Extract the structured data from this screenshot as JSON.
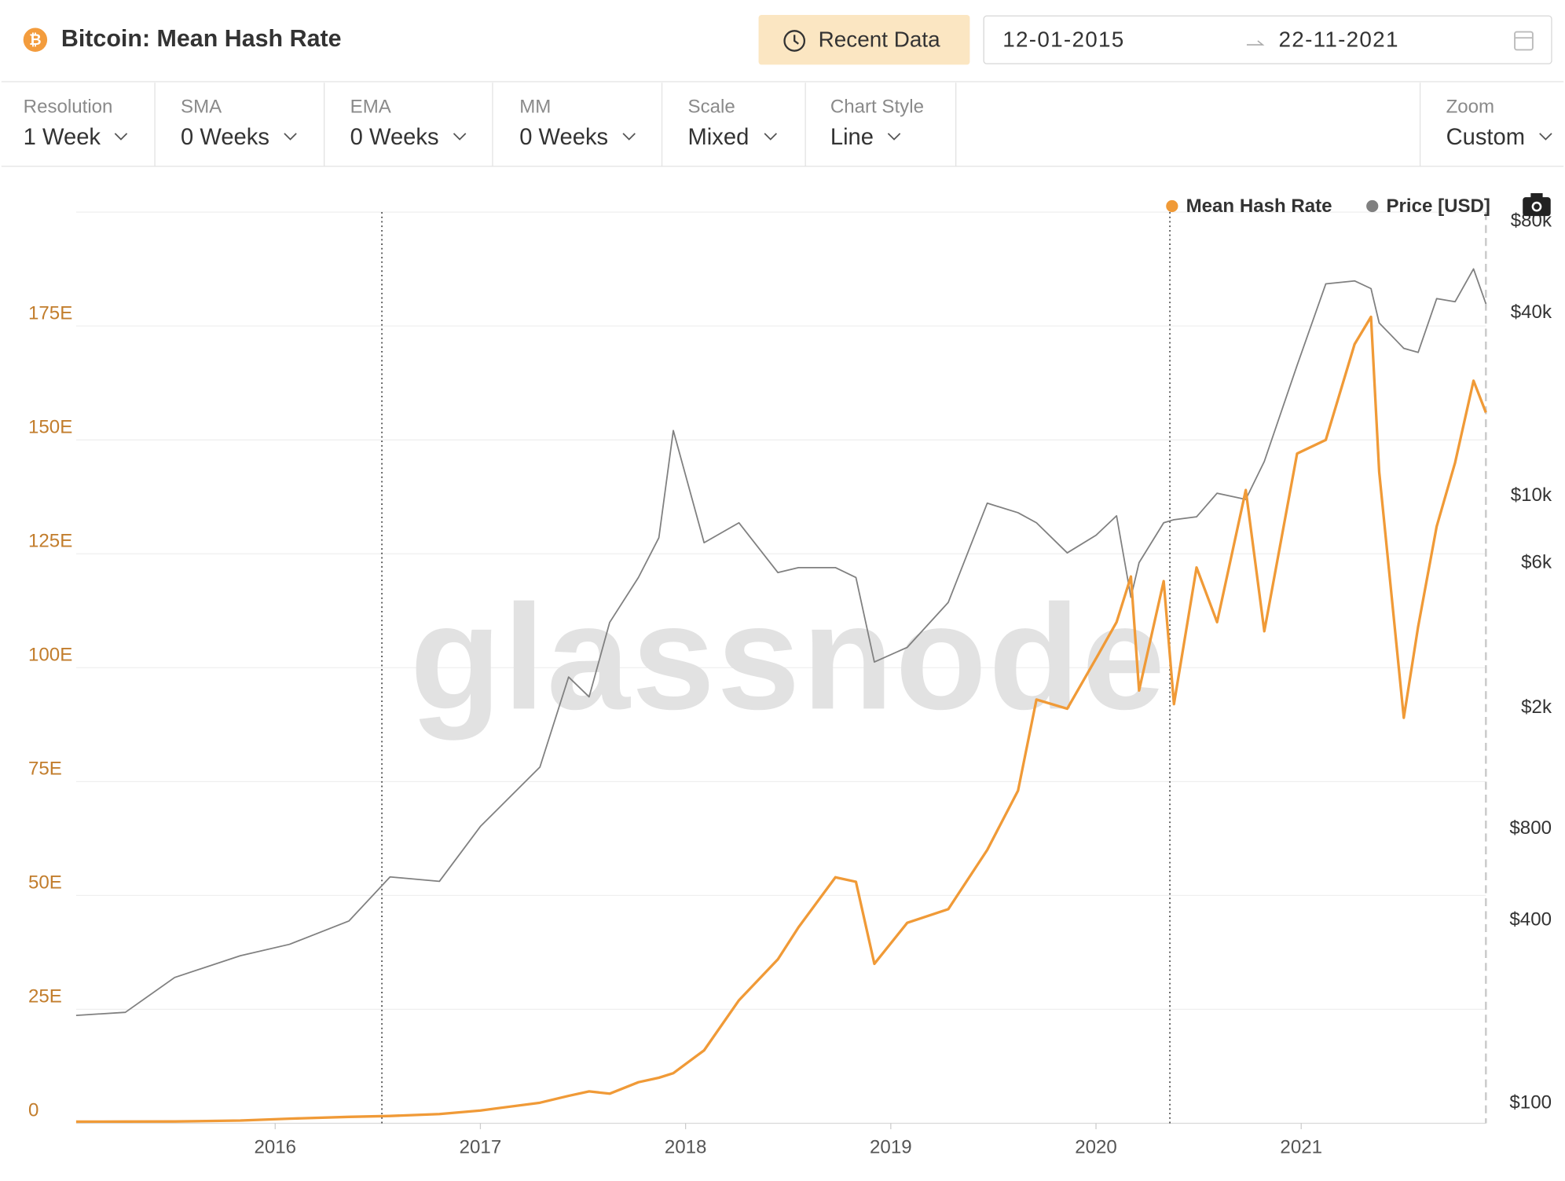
{
  "header": {
    "title": "Bitcoin: Mean Hash Rate",
    "button": "Recent Data",
    "date_from": "12-01-2015",
    "date_to": "22-11-2021"
  },
  "controls": [
    {
      "label": "Resolution",
      "value": "1 Week"
    },
    {
      "label": "SMA",
      "value": "0 Weeks"
    },
    {
      "label": "EMA",
      "value": "0 Weeks"
    },
    {
      "label": "MM",
      "value": "0 Weeks"
    },
    {
      "label": "Scale",
      "value": "Mixed"
    },
    {
      "label": "Chart Style",
      "value": "Line"
    },
    {
      "label": "Zoom",
      "value": "Custom"
    }
  ],
  "chart_data": {
    "type": "line",
    "watermark": "glassnode",
    "x": [
      2015.03,
      2015.27,
      2015.51,
      2015.83,
      2016.07,
      2016.36,
      2016.56,
      2016.8,
      2017.0,
      2017.29,
      2017.43,
      2017.53,
      2017.63,
      2017.77,
      2017.87,
      2017.94,
      2018.09,
      2018.26,
      2018.45,
      2018.55,
      2018.73,
      2018.83,
      2018.92,
      2019.08,
      2019.28,
      2019.47,
      2019.62,
      2019.71,
      2019.86,
      2020.0,
      2020.1,
      2020.17,
      2020.21,
      2020.33,
      2020.38,
      2020.49,
      2020.59,
      2020.73,
      2020.82,
      2020.98,
      2021.12,
      2021.26,
      2021.34,
      2021.38,
      2021.5,
      2021.57,
      2021.66,
      2021.75,
      2021.84,
      2021.9
    ],
    "series": [
      {
        "name": "Mean Hash Rate",
        "color": "#f09a37",
        "axis": "y",
        "values": [
          0.35,
          0.37,
          0.4,
          0.6,
          1.0,
          1.4,
          1.6,
          2.0,
          2.8,
          4.5,
          6,
          7,
          6.5,
          9,
          10,
          11,
          16,
          27,
          36,
          43,
          54,
          53,
          35,
          44,
          47,
          60,
          73,
          93,
          91,
          102,
          110,
          120,
          95,
          119,
          92,
          122,
          110,
          139,
          108,
          147,
          150,
          171,
          177,
          143,
          89,
          109,
          131,
          145,
          163,
          156
        ]
      },
      {
        "name": "Price [USD]",
        "color": "#808080",
        "axis": "y2",
        "values": [
          210,
          215,
          280,
          330,
          360,
          430,
          600,
          580,
          880,
          1380,
          2730,
          2350,
          4130,
          5810,
          7850,
          17700,
          7560,
          8790,
          6030,
          6260,
          6260,
          5810,
          3060,
          3420,
          4810,
          10200,
          9490,
          8790,
          7000,
          8000,
          9270,
          5000,
          6500,
          8790,
          9000,
          9200,
          11000,
          10500,
          14000,
          29000,
          53800,
          55000,
          51900,
          40000,
          33000,
          32000,
          48100,
          47000,
          60300,
          46300
        ]
      }
    ],
    "vlines": [
      2016.52,
      2020.36
    ],
    "xlim": [
      2015.03,
      2021.9
    ],
    "xticks": [
      2016,
      2017,
      2018,
      2019,
      2020,
      2021
    ],
    "ylim": [
      0,
      200
    ],
    "yticks": [
      0,
      {
        "value": 25,
        "label": "25E"
      },
      {
        "value": 50,
        "label": "50E"
      },
      {
        "value": 75,
        "label": "75E"
      },
      {
        "value": 100,
        "label": "100E"
      },
      {
        "value": 125,
        "label": "125E"
      },
      {
        "value": 150,
        "label": "150E"
      },
      {
        "value": 175,
        "label": "175E"
      }
    ],
    "y2lim": [
      92.7,
      92700
    ],
    "y2log": true,
    "y2ticks": [
      {
        "value": 100,
        "label": "$100"
      },
      {
        "value": 400,
        "label": "$400"
      },
      {
        "value": 800,
        "label": "$800"
      },
      {
        "value": 2000,
        "label": "$2k"
      },
      {
        "value": 6000,
        "label": "$6k"
      },
      {
        "value": 10000,
        "label": "$10k"
      },
      {
        "value": 40000,
        "label": "$40k"
      },
      {
        "value": 80000,
        "label": "$80k"
      }
    ],
    "grid": true,
    "legend": "top-right"
  }
}
